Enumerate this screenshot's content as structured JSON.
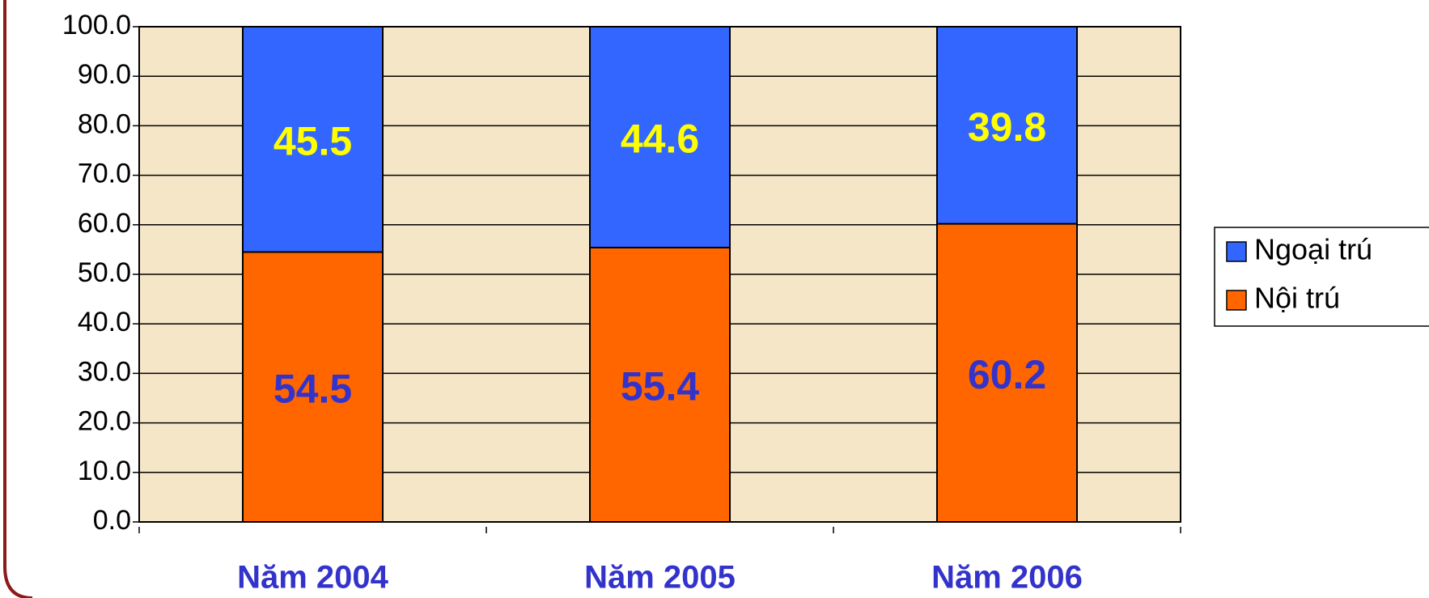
{
  "chart_data": {
    "type": "stacked_bar",
    "categories": [
      "Năm 2004",
      "Năm 2005",
      "Năm 2006"
    ],
    "series": [
      {
        "name": "Nội trú",
        "color": "#ff6600",
        "label_color": "#3333cc",
        "values": [
          54.5,
          55.4,
          60.2
        ]
      },
      {
        "name": "Ngoại trú",
        "color": "#3366ff",
        "label_color": "#ffff00",
        "values": [
          45.5,
          44.6,
          39.8
        ]
      }
    ],
    "ylim": [
      0,
      100
    ],
    "yticks": [
      {
        "value": 0,
        "label": "0.0"
      },
      {
        "value": 10,
        "label": "10.0"
      },
      {
        "value": 20,
        "label": "20.0"
      },
      {
        "value": 30,
        "label": "30.0"
      },
      {
        "value": 40,
        "label": "40.0"
      },
      {
        "value": 50,
        "label": "50.0"
      },
      {
        "value": 60,
        "label": "60.0"
      },
      {
        "value": 70,
        "label": "70.0"
      },
      {
        "value": 80,
        "label": "80.0"
      },
      {
        "value": 90,
        "label": "90.0"
      },
      {
        "value": 100,
        "label": "100.0"
      }
    ],
    "grid": true,
    "legend": "right"
  }
}
